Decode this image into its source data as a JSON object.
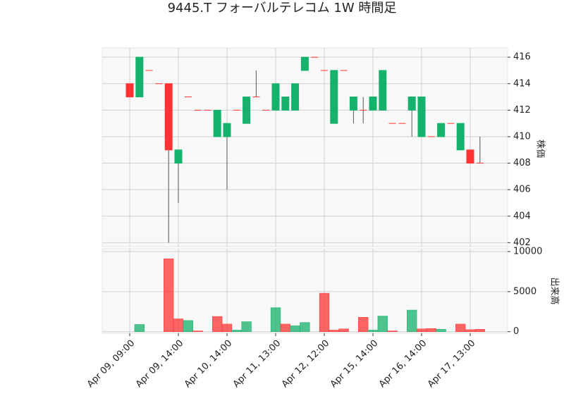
{
  "chart_data": {
    "type": "candlestick",
    "title": "9445.T フォーバルテレコム 1W 時間足",
    "categories": [
      "Apr 09, 09:00",
      null,
      null,
      null,
      null,
      "Apr 09, 14:00",
      null,
      null,
      null,
      null,
      "Apr 10, 14:00",
      null,
      null,
      null,
      null,
      "Apr 11, 13:00",
      null,
      null,
      null,
      null,
      "Apr 12, 12:00",
      null,
      null,
      null,
      null,
      "Apr 15, 14:00",
      null,
      null,
      null,
      null,
      "Apr 16, 14:00",
      null,
      null,
      null,
      null,
      "Apr 17, 13:00",
      null
    ],
    "open": [
      414,
      413,
      415,
      414,
      414,
      408,
      413,
      412,
      412,
      410,
      410,
      412,
      411,
      413,
      412,
      412,
      412,
      412,
      415,
      416,
      415,
      411,
      415,
      412,
      412,
      412,
      412,
      411,
      411,
      412,
      410,
      410,
      410,
      411,
      409,
      409,
      408
    ],
    "high": [
      414,
      416,
      415,
      414,
      414,
      409,
      413,
      412,
      412,
      412,
      411,
      412,
      413,
      415,
      412,
      414,
      413,
      414,
      416,
      416,
      415,
      415,
      415,
      413,
      413,
      413,
      415,
      411,
      411,
      413,
      413,
      410,
      411,
      411,
      411,
      409,
      410
    ],
    "low": [
      413,
      413,
      415,
      414,
      402,
      405,
      413,
      412,
      412,
      410,
      406,
      412,
      411,
      413,
      412,
      412,
      412,
      412,
      415,
      416,
      415,
      411,
      415,
      411,
      411,
      412,
      412,
      411,
      411,
      410,
      410,
      410,
      410,
      411,
      409,
      408,
      408
    ],
    "close": [
      413,
      416,
      415,
      414,
      409,
      409,
      413,
      412,
      412,
      412,
      411,
      412,
      413,
      413,
      412,
      414,
      413,
      414,
      416,
      416,
      415,
      415,
      415,
      413,
      412,
      413,
      415,
      411,
      411,
      413,
      413,
      410,
      411,
      411,
      411,
      408,
      408
    ],
    "volume": [
      0,
      900,
      0,
      0,
      9100,
      1600,
      1400,
      100,
      0,
      1900,
      950,
      200,
      1250,
      0,
      0,
      3000,
      950,
      750,
      1150,
      0,
      4800,
      200,
      350,
      0,
      1800,
      200,
      1950,
      100,
      0,
      2700,
      350,
      400,
      300,
      0,
      950,
      250,
      300
    ],
    "up_color": "#15b26b",
    "down_color": "#ff3333",
    "ylabel": "株価",
    "y2label": "出来高",
    "ylim": [
      401.7,
      416.7
    ],
    "yticks": [
      402,
      404,
      406,
      408,
      410,
      412,
      414,
      416
    ],
    "y2lim": [
      -200,
      10350
    ],
    "y2ticks": [
      0,
      5000,
      10000
    ],
    "grid": true
  }
}
